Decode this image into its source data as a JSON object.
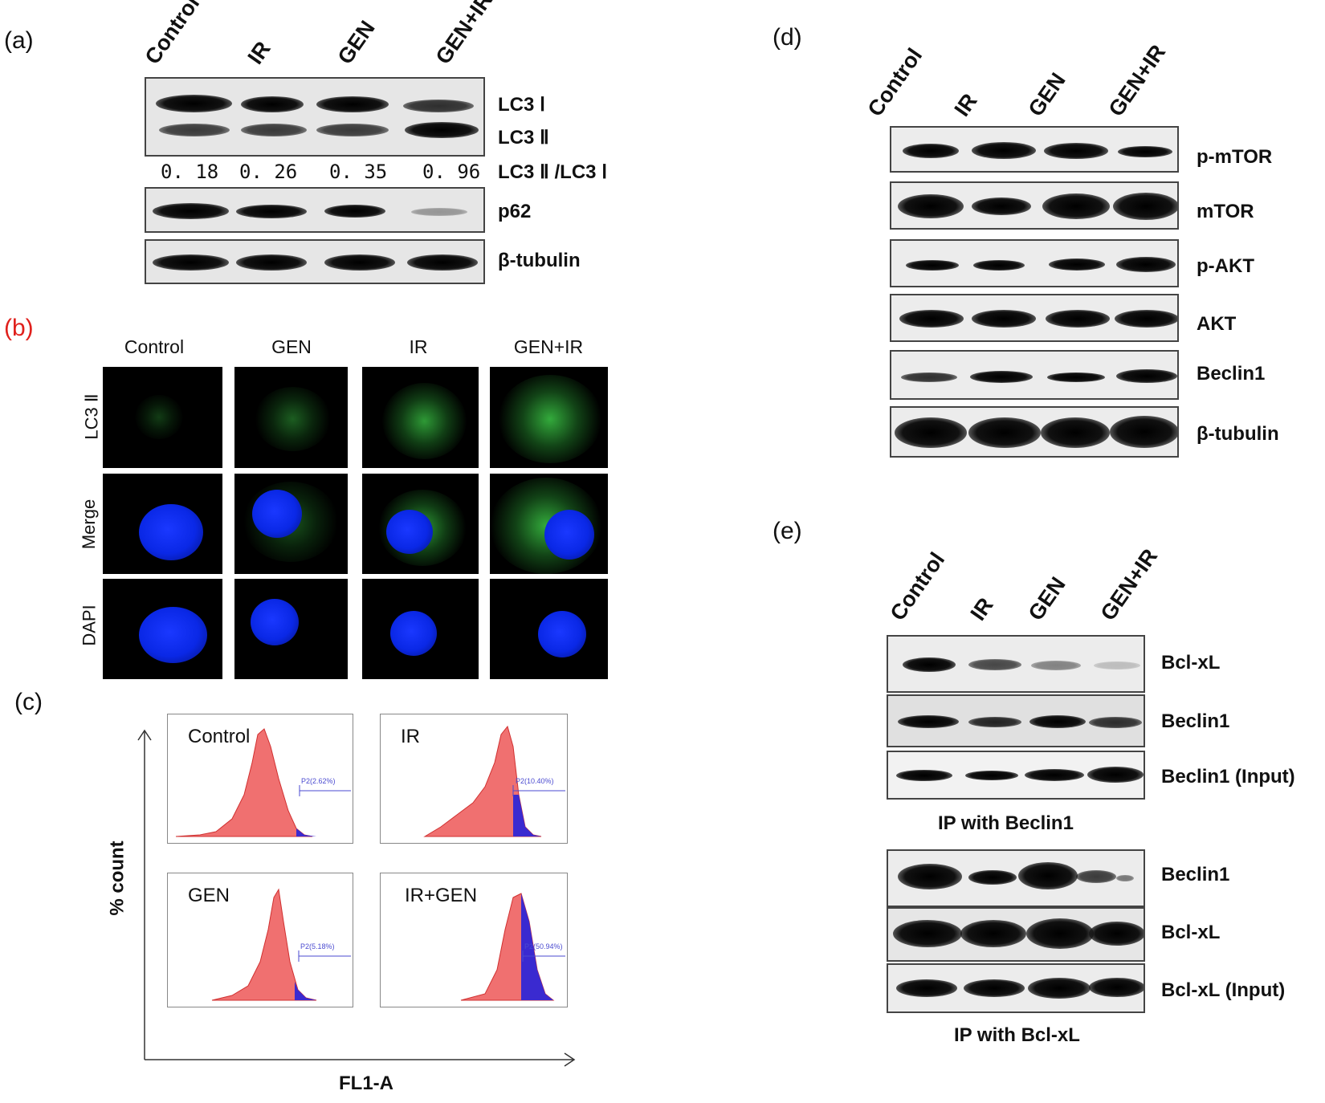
{
  "panels": {
    "a": {
      "label": "(a)",
      "lanes": [
        "Control",
        "IR",
        "GEN",
        "GEN+IR"
      ],
      "rows": {
        "lc3_1": "LC3 Ⅰ",
        "lc3_2": "LC3 Ⅱ",
        "ratio_label": "LC3 Ⅱ /LC3 Ⅰ",
        "p62": "p62",
        "tubulin": "β-tubulin"
      },
      "ratios": [
        "0. 18",
        "0. 26",
        "0. 35",
        "0. 96"
      ]
    },
    "b": {
      "label": "(b)",
      "label_color": "#e0201c",
      "columns": [
        "Control",
        "GEN",
        "IR",
        "GEN+IR"
      ],
      "rows": [
        "LC3 Ⅱ",
        "Merge",
        "DAPI"
      ]
    },
    "c": {
      "label": "(c)",
      "ylabel": "% count",
      "xlabel": "FL1-A",
      "hists": [
        {
          "title": "Control",
          "gate": "P2(2.62%)"
        },
        {
          "title": "IR",
          "gate": "P2(10.40%)"
        },
        {
          "title": "GEN",
          "gate": "P2(5.18%)"
        },
        {
          "title": "IR+GEN",
          "gate": "P2(50.94%)"
        }
      ],
      "colors": {
        "red": "#f07070",
        "blue": "#3a2ad0"
      }
    },
    "d": {
      "label": "(d)",
      "lanes": [
        "Control",
        "IR",
        "GEN",
        "GEN+IR"
      ],
      "rows": [
        "p-mTOR",
        "mTOR",
        "p-AKT",
        "AKT",
        "Beclin1",
        "β-tubulin"
      ]
    },
    "e": {
      "label": "(e)",
      "lanes": [
        "Control",
        "IR",
        "GEN",
        "GEN+IR"
      ],
      "rows_top": [
        "Bcl-xL",
        "Beclin1",
        "Beclin1  (Input)"
      ],
      "caption_top": "IP with Beclin1",
      "rows_bottom": [
        "Beclin1",
        "Bcl-xL",
        "Bcl-xL (Input)"
      ],
      "caption_bottom": "IP with Bcl-xL"
    }
  }
}
